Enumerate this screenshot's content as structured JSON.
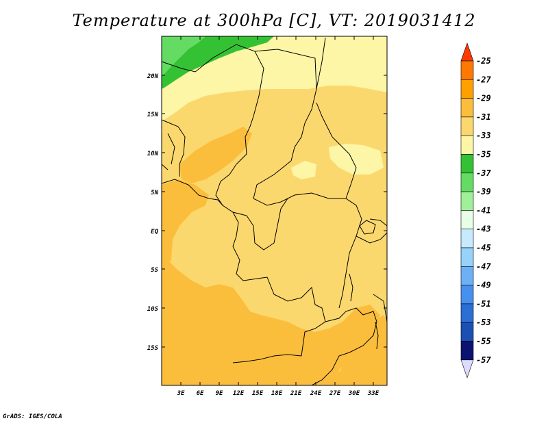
{
  "title": "Temperature at 300hPa [C], VT: 2019031412",
  "credit": "GrADS: IGES/COLA",
  "map": {
    "lat_labels": [
      "20N",
      "15N",
      "10N",
      "5N",
      "EQ",
      "5S",
      "10S",
      "15S"
    ],
    "lon_labels": [
      "3E",
      "6E",
      "9E",
      "12E",
      "15E",
      "18E",
      "21E",
      "24E",
      "27E",
      "30E",
      "33E"
    ]
  },
  "colorbar": {
    "labels": [
      "-25",
      "-27",
      "-29",
      "-31",
      "-33",
      "-35",
      "-37",
      "-39",
      "-41",
      "-43",
      "-45",
      "-47",
      "-49",
      "-51",
      "-53",
      "-55",
      "-57"
    ],
    "colors": [
      "#ff3c00",
      "#ff7800",
      "#ffa000",
      "#fbbe3c",
      "#fbd86e",
      "#fdf6a6",
      "#34c234",
      "#64dc64",
      "#a0f09a",
      "#e6ffe6",
      "#c8eaff",
      "#96d2fa",
      "#6eb0f5",
      "#4690f0",
      "#2a6ed6",
      "#1a4fb4",
      "#0a1470"
    ],
    "top_arrow_color": "#ff3c00",
    "bottom_arrow_color": "#dcdcff"
  },
  "field_colors": {
    "t29": "#fbbe3c",
    "t31": "#fbd86e",
    "t33": "#fdf6a6",
    "t35": "#fdf6a6",
    "t37": "#34c234",
    "t39": "#64dc64"
  }
}
